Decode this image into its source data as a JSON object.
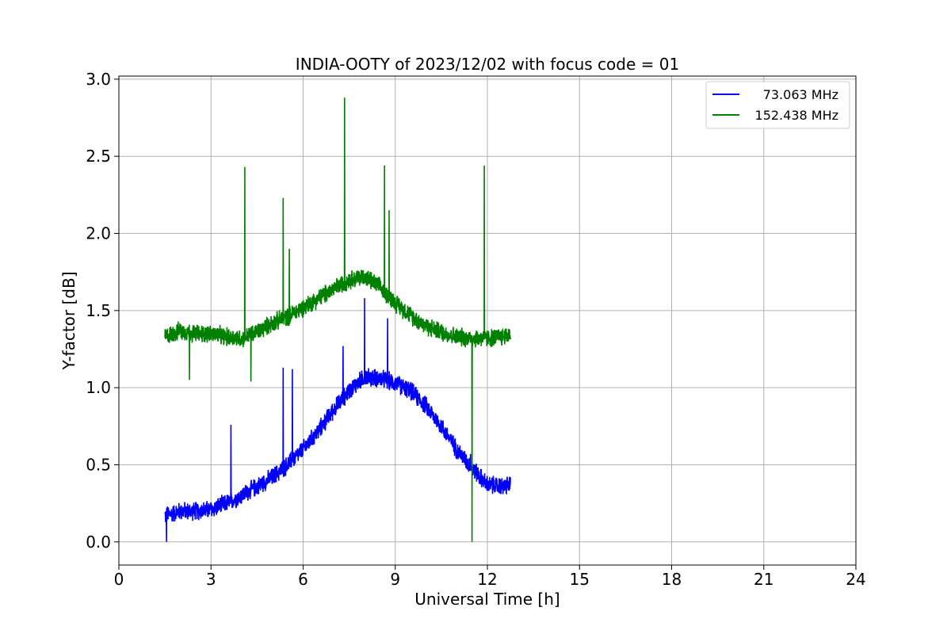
{
  "chart_data": {
    "type": "line",
    "title": "INDIA-OOTY of 2023/12/02 with focus code = 01",
    "xlabel": "Universal Time [h]",
    "ylabel": "Y-factor [dB]",
    "xlim": [
      0,
      24
    ],
    "ylim": [
      -0.15,
      3.02
    ],
    "xticks": [
      0,
      3,
      6,
      9,
      12,
      15,
      18,
      21,
      24
    ],
    "yticks": [
      0.0,
      0.5,
      1.0,
      1.5,
      2.0,
      2.5,
      3.0
    ],
    "xtick_labels": [
      "0",
      "3",
      "6",
      "9",
      "12",
      "15",
      "18",
      "21",
      "24"
    ],
    "ytick_labels": [
      "0.0",
      "0.5",
      "1.0",
      "1.5",
      "2.0",
      "2.5",
      "3.0"
    ],
    "grid": true,
    "legend_position": "upper right",
    "series": [
      {
        "name": "73.063 MHz",
        "color": "#0000ff",
        "x": [
          1.5,
          2.0,
          2.5,
          3.0,
          3.5,
          4.0,
          4.5,
          5.0,
          5.5,
          6.0,
          6.5,
          7.0,
          7.5,
          8.0,
          8.5,
          9.0,
          9.5,
          10.0,
          10.5,
          11.0,
          11.5,
          12.0,
          12.5,
          12.75
        ],
        "y": [
          0.17,
          0.2,
          0.2,
          0.21,
          0.25,
          0.3,
          0.36,
          0.42,
          0.5,
          0.6,
          0.72,
          0.86,
          0.98,
          1.07,
          1.06,
          1.03,
          0.98,
          0.88,
          0.75,
          0.6,
          0.48,
          0.37,
          0.36,
          0.37
        ],
        "noise": 0.05,
        "spikes": [
          [
            1.55,
            0.0
          ],
          [
            3.65,
            0.76
          ],
          [
            5.35,
            1.13
          ],
          [
            5.65,
            1.12
          ],
          [
            7.3,
            1.27
          ],
          [
            8.0,
            1.58
          ],
          [
            8.75,
            1.45
          ],
          [
            11.45,
            0.57
          ]
        ]
      },
      {
        "name": "152.438 MHz",
        "color": "#008000",
        "x": [
          1.5,
          2.0,
          2.5,
          3.0,
          3.5,
          4.0,
          4.5,
          5.0,
          5.5,
          6.0,
          6.5,
          7.0,
          7.5,
          8.0,
          8.5,
          9.0,
          9.5,
          10.0,
          10.5,
          11.0,
          11.5,
          12.0,
          12.5,
          12.75
        ],
        "y": [
          1.33,
          1.37,
          1.35,
          1.35,
          1.33,
          1.32,
          1.36,
          1.42,
          1.46,
          1.52,
          1.58,
          1.64,
          1.7,
          1.72,
          1.65,
          1.55,
          1.47,
          1.4,
          1.36,
          1.33,
          1.32,
          1.32,
          1.33,
          1.35
        ],
        "noise": 0.05,
        "spikes": [
          [
            2.3,
            1.05
          ],
          [
            4.1,
            2.43
          ],
          [
            4.3,
            1.04
          ],
          [
            5.35,
            2.23
          ],
          [
            5.55,
            1.9
          ],
          [
            7.35,
            2.88
          ],
          [
            8.65,
            2.44
          ],
          [
            8.8,
            2.15
          ],
          [
            11.5,
            0.0
          ],
          [
            11.9,
            2.44
          ]
        ]
      }
    ]
  }
}
